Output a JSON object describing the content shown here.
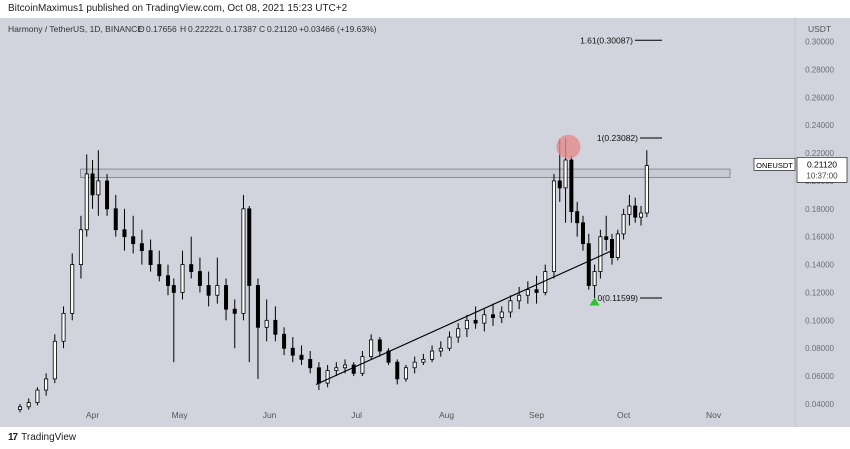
{
  "header": {
    "publish_line": "BitcoinMaximus1 published on TradingView.com, Oct 08, 2021 15:23 UTC+2"
  },
  "footer": {
    "logo_mark": "17",
    "logo_text": "TradingView"
  },
  "colors": {
    "background": "#d1d4dc",
    "candle": "#000000",
    "resistance_zone": "#c8cbd3",
    "marker_circle": "#e58b8b",
    "marker_triangle": "#2ec22e"
  },
  "chart_data": {
    "type": "candlestick",
    "symbol_info": "Harmony / TetherUS, 1D, BINANCE",
    "ohlc": {
      "open_label": "O",
      "open": "0.17656",
      "high_label": "H",
      "high": "0.22222",
      "low_label": "L",
      "low": "0.17387",
      "close_label": "C",
      "close": "0.21120",
      "change": "+0.03466 (+19.63%)"
    },
    "y_axis": {
      "unit": "USDT",
      "ylim": [
        0.04,
        0.305
      ],
      "ticks": [
        "0.30000",
        "0.28000",
        "0.26000",
        "0.24000",
        "0.22000",
        "0.20000",
        "0.18000",
        "0.16000",
        "0.14000",
        "0.12000",
        "0.10000",
        "0.08000",
        "0.06000",
        "0.04000"
      ],
      "tick_values": [
        0.3,
        0.28,
        0.26,
        0.24,
        0.22,
        0.2,
        0.18,
        0.16,
        0.14,
        0.12,
        0.1,
        0.08,
        0.06,
        0.04
      ]
    },
    "x_axis": {
      "ticks": [
        "Apr",
        "May",
        "Jun",
        "Jul",
        "Aug",
        "Sep",
        "Oct",
        "Nov"
      ],
      "tick_days": [
        0,
        30,
        61,
        91,
        122,
        153,
        183,
        214
      ],
      "start_date": "2021-03-01",
      "xlim_days": [
        -25,
        230
      ]
    },
    "price_label": {
      "symbol": "ONEUSDT",
      "price": "0.21120",
      "countdown": "10:37:00",
      "value": 0.2112
    },
    "fib_levels": [
      {
        "label": "1.61(0.30087)",
        "value": 0.30087
      },
      {
        "label": "1(0.23082)",
        "value": 0.23082
      },
      {
        "label": "0(0.11599)",
        "value": 0.11599
      }
    ],
    "resistance_zone": {
      "low": 0.2025,
      "high": 0.2085
    },
    "trendline": {
      "start_day": 77,
      "start_value": 0.054,
      "end_day": 179,
      "end_value": 0.15
    },
    "marker_circle": {
      "day": 164,
      "value": 0.2245
    },
    "marker_triangle": {
      "day": 173,
      "value": 0.1135
    },
    "candles": [
      {
        "d": -25,
        "o": 0.036,
        "h": 0.04,
        "l": 0.034,
        "c": 0.038
      },
      {
        "d": -22,
        "o": 0.038,
        "h": 0.044,
        "l": 0.036,
        "c": 0.041
      },
      {
        "d": -19,
        "o": 0.041,
        "h": 0.052,
        "l": 0.039,
        "c": 0.05
      },
      {
        "d": -16,
        "o": 0.05,
        "h": 0.062,
        "l": 0.046,
        "c": 0.058
      },
      {
        "d": -13,
        "o": 0.058,
        "h": 0.09,
        "l": 0.055,
        "c": 0.085
      },
      {
        "d": -10,
        "o": 0.085,
        "h": 0.11,
        "l": 0.08,
        "c": 0.105
      },
      {
        "d": -7,
        "o": 0.105,
        "h": 0.148,
        "l": 0.1,
        "c": 0.14
      },
      {
        "d": -4,
        "o": 0.14,
        "h": 0.175,
        "l": 0.13,
        "c": 0.165
      },
      {
        "d": -2,
        "o": 0.165,
        "h": 0.219,
        "l": 0.16,
        "c": 0.205
      },
      {
        "d": 0,
        "o": 0.205,
        "h": 0.215,
        "l": 0.18,
        "c": 0.19
      },
      {
        "d": 2,
        "o": 0.19,
        "h": 0.222,
        "l": 0.175,
        "c": 0.2
      },
      {
        "d": 5,
        "o": 0.2,
        "h": 0.205,
        "l": 0.175,
        "c": 0.18
      },
      {
        "d": 8,
        "o": 0.18,
        "h": 0.19,
        "l": 0.16,
        "c": 0.165
      },
      {
        "d": 11,
        "o": 0.165,
        "h": 0.18,
        "l": 0.15,
        "c": 0.16
      },
      {
        "d": 14,
        "o": 0.16,
        "h": 0.175,
        "l": 0.148,
        "c": 0.155
      },
      {
        "d": 17,
        "o": 0.155,
        "h": 0.165,
        "l": 0.14,
        "c": 0.15
      },
      {
        "d": 20,
        "o": 0.15,
        "h": 0.158,
        "l": 0.135,
        "c": 0.14
      },
      {
        "d": 23,
        "o": 0.14,
        "h": 0.15,
        "l": 0.128,
        "c": 0.132
      },
      {
        "d": 26,
        "o": 0.132,
        "h": 0.14,
        "l": 0.118,
        "c": 0.125
      },
      {
        "d": 28,
        "o": 0.125,
        "h": 0.13,
        "l": 0.07,
        "c": 0.12
      },
      {
        "d": 31,
        "o": 0.12,
        "h": 0.15,
        "l": 0.115,
        "c": 0.14
      },
      {
        "d": 34,
        "o": 0.14,
        "h": 0.16,
        "l": 0.13,
        "c": 0.135
      },
      {
        "d": 37,
        "o": 0.135,
        "h": 0.145,
        "l": 0.12,
        "c": 0.125
      },
      {
        "d": 40,
        "o": 0.125,
        "h": 0.135,
        "l": 0.11,
        "c": 0.118
      },
      {
        "d": 43,
        "o": 0.118,
        "h": 0.145,
        "l": 0.112,
        "c": 0.125
      },
      {
        "d": 46,
        "o": 0.125,
        "h": 0.13,
        "l": 0.1,
        "c": 0.108
      },
      {
        "d": 49,
        "o": 0.108,
        "h": 0.115,
        "l": 0.08,
        "c": 0.105
      },
      {
        "d": 52,
        "o": 0.105,
        "h": 0.19,
        "l": 0.1,
        "c": 0.18
      },
      {
        "d": 54,
        "o": 0.18,
        "h": 0.182,
        "l": 0.07,
        "c": 0.125
      },
      {
        "d": 57,
        "o": 0.125,
        "h": 0.13,
        "l": 0.058,
        "c": 0.095
      },
      {
        "d": 60,
        "o": 0.095,
        "h": 0.115,
        "l": 0.085,
        "c": 0.1
      },
      {
        "d": 63,
        "o": 0.1,
        "h": 0.11,
        "l": 0.085,
        "c": 0.09
      },
      {
        "d": 66,
        "o": 0.09,
        "h": 0.095,
        "l": 0.075,
        "c": 0.08
      },
      {
        "d": 69,
        "o": 0.08,
        "h": 0.088,
        "l": 0.07,
        "c": 0.075
      },
      {
        "d": 72,
        "o": 0.075,
        "h": 0.082,
        "l": 0.068,
        "c": 0.072
      },
      {
        "d": 75,
        "o": 0.072,
        "h": 0.078,
        "l": 0.062,
        "c": 0.066
      },
      {
        "d": 78,
        "o": 0.066,
        "h": 0.07,
        "l": 0.05,
        "c": 0.055
      },
      {
        "d": 81,
        "o": 0.055,
        "h": 0.068,
        "l": 0.052,
        "c": 0.064
      },
      {
        "d": 84,
        "o": 0.064,
        "h": 0.07,
        "l": 0.06,
        "c": 0.066
      },
      {
        "d": 87,
        "o": 0.066,
        "h": 0.072,
        "l": 0.062,
        "c": 0.068
      },
      {
        "d": 90,
        "o": 0.068,
        "h": 0.07,
        "l": 0.06,
        "c": 0.062
      },
      {
        "d": 93,
        "o": 0.062,
        "h": 0.078,
        "l": 0.06,
        "c": 0.074
      },
      {
        "d": 96,
        "o": 0.074,
        "h": 0.09,
        "l": 0.072,
        "c": 0.086
      },
      {
        "d": 99,
        "o": 0.086,
        "h": 0.088,
        "l": 0.074,
        "c": 0.078
      },
      {
        "d": 102,
        "o": 0.078,
        "h": 0.08,
        "l": 0.068,
        "c": 0.07
      },
      {
        "d": 105,
        "o": 0.07,
        "h": 0.072,
        "l": 0.054,
        "c": 0.058
      },
      {
        "d": 108,
        "o": 0.058,
        "h": 0.068,
        "l": 0.056,
        "c": 0.066
      },
      {
        "d": 111,
        "o": 0.066,
        "h": 0.074,
        "l": 0.062,
        "c": 0.07
      },
      {
        "d": 114,
        "o": 0.07,
        "h": 0.076,
        "l": 0.068,
        "c": 0.072
      },
      {
        "d": 117,
        "o": 0.072,
        "h": 0.082,
        "l": 0.07,
        "c": 0.078
      },
      {
        "d": 120,
        "o": 0.078,
        "h": 0.085,
        "l": 0.074,
        "c": 0.08
      },
      {
        "d": 123,
        "o": 0.08,
        "h": 0.092,
        "l": 0.078,
        "c": 0.088
      },
      {
        "d": 126,
        "o": 0.088,
        "h": 0.098,
        "l": 0.084,
        "c": 0.094
      },
      {
        "d": 129,
        "o": 0.094,
        "h": 0.104,
        "l": 0.088,
        "c": 0.1
      },
      {
        "d": 132,
        "o": 0.1,
        "h": 0.11,
        "l": 0.094,
        "c": 0.098
      },
      {
        "d": 135,
        "o": 0.098,
        "h": 0.108,
        "l": 0.092,
        "c": 0.104
      },
      {
        "d": 138,
        "o": 0.104,
        "h": 0.112,
        "l": 0.096,
        "c": 0.102
      },
      {
        "d": 141,
        "o": 0.102,
        "h": 0.11,
        "l": 0.098,
        "c": 0.106
      },
      {
        "d": 144,
        "o": 0.106,
        "h": 0.118,
        "l": 0.102,
        "c": 0.114
      },
      {
        "d": 147,
        "o": 0.114,
        "h": 0.124,
        "l": 0.108,
        "c": 0.118
      },
      {
        "d": 150,
        "o": 0.118,
        "h": 0.128,
        "l": 0.112,
        "c": 0.122
      },
      {
        "d": 153,
        "o": 0.122,
        "h": 0.132,
        "l": 0.112,
        "c": 0.12
      },
      {
        "d": 156,
        "o": 0.12,
        "h": 0.14,
        "l": 0.118,
        "c": 0.135
      },
      {
        "d": 159,
        "o": 0.135,
        "h": 0.205,
        "l": 0.13,
        "c": 0.2
      },
      {
        "d": 161,
        "o": 0.2,
        "h": 0.23,
        "l": 0.185,
        "c": 0.195
      },
      {
        "d": 163,
        "o": 0.195,
        "h": 0.231,
        "l": 0.17,
        "c": 0.215
      },
      {
        "d": 165,
        "o": 0.215,
        "h": 0.218,
        "l": 0.17,
        "c": 0.178
      },
      {
        "d": 167,
        "o": 0.178,
        "h": 0.185,
        "l": 0.16,
        "c": 0.17
      },
      {
        "d": 169,
        "o": 0.17,
        "h": 0.175,
        "l": 0.15,
        "c": 0.155
      },
      {
        "d": 171,
        "o": 0.155,
        "h": 0.162,
        "l": 0.122,
        "c": 0.125
      },
      {
        "d": 173,
        "o": 0.125,
        "h": 0.14,
        "l": 0.116,
        "c": 0.135
      },
      {
        "d": 175,
        "o": 0.135,
        "h": 0.165,
        "l": 0.13,
        "c": 0.16
      },
      {
        "d": 177,
        "o": 0.16,
        "h": 0.175,
        "l": 0.15,
        "c": 0.158
      },
      {
        "d": 179,
        "o": 0.158,
        "h": 0.162,
        "l": 0.14,
        "c": 0.145
      },
      {
        "d": 181,
        "o": 0.145,
        "h": 0.165,
        "l": 0.143,
        "c": 0.162
      },
      {
        "d": 183,
        "o": 0.162,
        "h": 0.18,
        "l": 0.158,
        "c": 0.176
      },
      {
        "d": 185,
        "o": 0.176,
        "h": 0.19,
        "l": 0.168,
        "c": 0.182
      },
      {
        "d": 187,
        "o": 0.182,
        "h": 0.188,
        "l": 0.17,
        "c": 0.174
      },
      {
        "d": 189,
        "o": 0.174,
        "h": 0.182,
        "l": 0.168,
        "c": 0.177
      },
      {
        "d": 191,
        "o": 0.177,
        "h": 0.222,
        "l": 0.174,
        "c": 0.211
      }
    ]
  }
}
